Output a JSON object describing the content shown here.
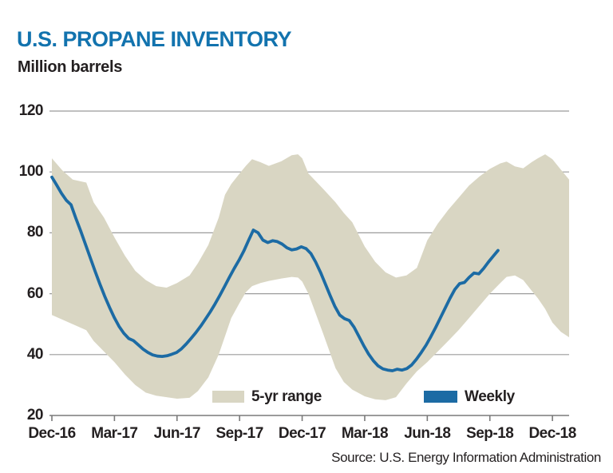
{
  "header": {
    "title": "U.S. PROPANE INVENTORY",
    "subtitle": "Million barrels"
  },
  "source": {
    "text": "Source: U.S. Energy Information Administration"
  },
  "legend": [
    {
      "label": "5-yr range",
      "swatch": "band"
    },
    {
      "label": "Weekly",
      "swatch": "line"
    }
  ],
  "colors": {
    "title_blue": "#1273ae",
    "line_blue": "#1c6ba4",
    "band_beige": "#d9d6c3",
    "grid_gray": "#9b9b9b",
    "axis_gray": "#7a7a7a",
    "text_black": "#231f20"
  },
  "chart_data": {
    "type": "line",
    "title": "U.S. PROPANE INVENTORY",
    "ylabel": "Million barrels",
    "ylim": [
      20,
      120
    ],
    "yticks": [
      20,
      40,
      60,
      80,
      100,
      120
    ],
    "grid": "horizontal",
    "legend_position": "bottom-inside",
    "x_unit": "months since Dec-2016; ticks every 3 months",
    "x_range_months": [
      0,
      24.8
    ],
    "xticks": [
      "Dec-16",
      "Mar-17",
      "Jun-17",
      "Sep-17",
      "Dec-17",
      "Mar-18",
      "Jun-18",
      "Sep-18",
      "Dec-18"
    ],
    "xtick_months": [
      0,
      3,
      6,
      9,
      12,
      15,
      18,
      21,
      24
    ],
    "series": [
      {
        "name": "5-yr range",
        "type": "band",
        "x_months": [
          0,
          0.5,
          1,
          1.65,
          2,
          2.5,
          3,
          3.5,
          4,
          4.5,
          5,
          5.5,
          6,
          6.6,
          7,
          7.5,
          8,
          8.3,
          8.6,
          9,
          9.3,
          9.6,
          10,
          10.4,
          11,
          11.5,
          11.8,
          12,
          12.3,
          13,
          13.6,
          14,
          14.4,
          15,
          15.5,
          16,
          16.5,
          17,
          17.5,
          18,
          18.5,
          19,
          19.5,
          20,
          20.5,
          21,
          21.5,
          21.8,
          22.2,
          22.6,
          23,
          23.3,
          23.65,
          24,
          24.4,
          24.8
        ],
        "top": [
          104.5,
          100.5,
          97.5,
          96.5,
          90,
          85,
          78.5,
          72.5,
          67.5,
          64.5,
          62.5,
          62,
          63.5,
          66,
          70,
          76,
          85,
          92.5,
          96,
          99.5,
          102,
          104.2,
          103.2,
          102,
          103.5,
          105.5,
          105.8,
          104.5,
          99.5,
          94.5,
          90,
          86.5,
          83.5,
          75.5,
          70.5,
          67,
          65.3,
          66,
          68.5,
          77.5,
          83,
          87.5,
          91.5,
          95.5,
          98.5,
          101,
          102.8,
          103.4,
          101.8,
          101.2,
          103.2,
          104.5,
          105.8,
          104.2,
          100.8,
          97.5
        ],
        "bottom": [
          53,
          51.5,
          50,
          48,
          44.5,
          41,
          37.5,
          33.5,
          30,
          27.5,
          26.5,
          26,
          25.5,
          25.8,
          28,
          32.5,
          40,
          46,
          52,
          57,
          60.5,
          62.5,
          63.5,
          64.2,
          65,
          65.5,
          65.3,
          64,
          60,
          47,
          35.5,
          31,
          28.5,
          26.3,
          25.3,
          25,
          26,
          30.5,
          34.5,
          37.5,
          41,
          44.5,
          48,
          52,
          56,
          60,
          63.5,
          65.5,
          66,
          64.5,
          61,
          58.5,
          55,
          50.5,
          47.5,
          45.7
        ]
      },
      {
        "name": "Weekly",
        "type": "line",
        "cadence": "weekly",
        "start_label": "Dec-2016",
        "x_start_months": 0,
        "x_step_months": 0.23,
        "values": [
          98.3,
          95.7,
          93.0,
          90.7,
          89.2,
          84.8,
          80.6,
          76.2,
          71.8,
          67.4,
          63.2,
          59.2,
          55.6,
          52.2,
          49.3,
          47.0,
          45.3,
          44.6,
          43.2,
          41.8,
          40.7,
          39.9,
          39.5,
          39.4,
          39.6,
          40.1,
          40.7,
          41.9,
          43.5,
          45.3,
          47.2,
          49.3,
          51.6,
          54.0,
          56.6,
          59.4,
          62.4,
          65.4,
          68.3,
          71.0,
          74.0,
          77.5,
          80.9,
          80.0,
          77.6,
          76.8,
          77.4,
          77.1,
          76.3,
          75.1,
          74.4,
          74.7,
          75.4,
          74.8,
          73.2,
          70.4,
          67.0,
          63.2,
          59.4,
          55.8,
          53.0,
          51.8,
          51.2,
          49.0,
          46.0,
          43.0,
          40.2,
          38.0,
          36.3,
          35.3,
          34.9,
          34.7,
          35.2,
          34.9,
          35.4,
          36.6,
          38.5,
          40.7,
          43.1,
          45.9,
          48.9,
          52.1,
          55.3,
          58.5,
          61.4,
          63.3,
          63.7,
          65.4,
          66.8,
          66.5,
          68.3,
          70.4,
          72.3,
          74.2
        ]
      }
    ]
  }
}
